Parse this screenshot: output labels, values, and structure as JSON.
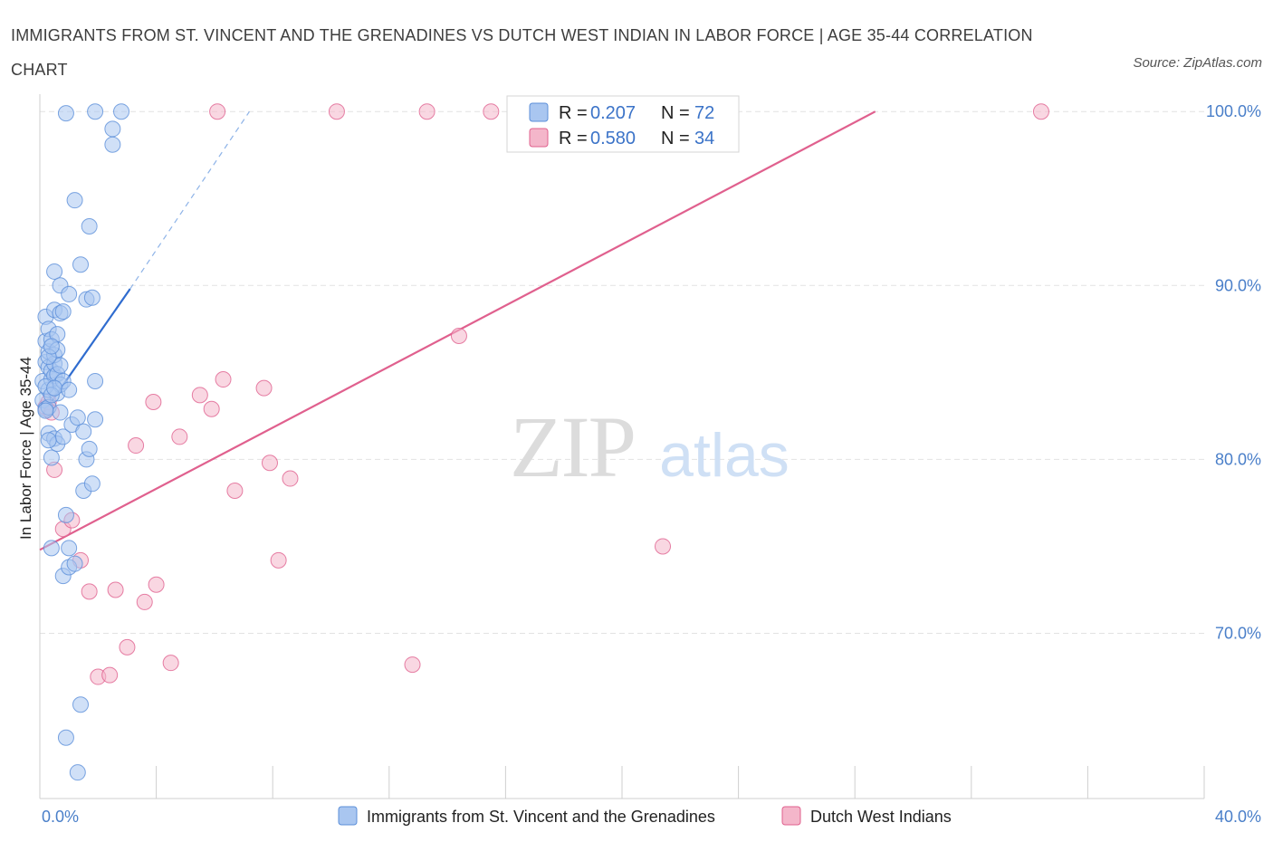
{
  "title": "IMMIGRANTS FROM ST. VINCENT AND THE GRENADINES VS DUTCH WEST INDIAN IN LABOR FORCE | AGE 35-44 CORRELATION CHART",
  "source": "Source: ZipAtlas.com",
  "colors": {
    "blue": "#5b8fd9",
    "blue_fill": "#a9c6f0",
    "pink": "#e0608e",
    "pink_fill": "#f4b6ca",
    "tick": "#4a7fc9"
  },
  "legend": {
    "r_label": "R =",
    "n_label": "N =",
    "rows": [
      {
        "r": "0.207",
        "n": "72"
      },
      {
        "r": "0.580",
        "n": "34"
      }
    ]
  },
  "chart_data": {
    "type": "scatter",
    "ylabel": "In Labor Force | Age 35-44",
    "xlim": [
      0,
      40
    ],
    "ylim": [
      60.5,
      101
    ],
    "x_tick_labels": [
      "0.0%",
      "40.0%"
    ],
    "y_ticks": [
      70,
      80,
      90,
      100
    ],
    "y_tick_labels": [
      "70.0%",
      "80.0%",
      "90.0%",
      "100.0%"
    ],
    "series": [
      {
        "name": "Immigrants from St. Vincent and the Grenadines",
        "color": "#5b8fd9",
        "points": [
          [
            0.1,
            83.4
          ],
          [
            0.1,
            84.5
          ],
          [
            0.2,
            85.6
          ],
          [
            0.2,
            86.8
          ],
          [
            0.2,
            88.2
          ],
          [
            0.2,
            82.9
          ],
          [
            0.3,
            84.0
          ],
          [
            0.3,
            85.3
          ],
          [
            0.3,
            86.2
          ],
          [
            0.3,
            87.5
          ],
          [
            0.3,
            81.5
          ],
          [
            0.3,
            83.0
          ],
          [
            0.4,
            84.6
          ],
          [
            0.4,
            85.1
          ],
          [
            0.4,
            86.9
          ],
          [
            0.4,
            80.1
          ],
          [
            0.4,
            74.9
          ],
          [
            0.5,
            84.8
          ],
          [
            0.5,
            85.5
          ],
          [
            0.5,
            86.0
          ],
          [
            0.5,
            88.6
          ],
          [
            0.5,
            90.8
          ],
          [
            0.5,
            81.2
          ],
          [
            0.6,
            83.8
          ],
          [
            0.6,
            84.9
          ],
          [
            0.6,
            86.3
          ],
          [
            0.6,
            80.9
          ],
          [
            0.7,
            84.3
          ],
          [
            0.7,
            82.7
          ],
          [
            0.7,
            88.4
          ],
          [
            0.7,
            90.0
          ],
          [
            0.7,
            85.4
          ],
          [
            0.8,
            84.5
          ],
          [
            0.8,
            81.3
          ],
          [
            0.8,
            73.3
          ],
          [
            0.9,
            99.9
          ],
          [
            0.9,
            76.8
          ],
          [
            0.9,
            64.0
          ],
          [
            1.0,
            74.9
          ],
          [
            1.0,
            89.5
          ],
          [
            1.0,
            73.8
          ],
          [
            1.1,
            82.0
          ],
          [
            1.2,
            74.0
          ],
          [
            1.2,
            94.9
          ],
          [
            1.3,
            82.4
          ],
          [
            1.3,
            62.0
          ],
          [
            1.4,
            91.2
          ],
          [
            1.4,
            65.9
          ],
          [
            1.5,
            81.6
          ],
          [
            1.5,
            78.2
          ],
          [
            1.6,
            89.2
          ],
          [
            1.6,
            80.0
          ],
          [
            1.7,
            93.4
          ],
          [
            1.7,
            80.6
          ],
          [
            1.8,
            78.6
          ],
          [
            1.8,
            89.3
          ],
          [
            1.9,
            100.0
          ],
          [
            1.9,
            82.3
          ],
          [
            1.9,
            84.5
          ],
          [
            2.5,
            98.1
          ],
          [
            2.5,
            99.0
          ],
          [
            2.8,
            100.0
          ],
          [
            0.2,
            84.2
          ],
          [
            0.3,
            85.9
          ],
          [
            0.4,
            83.7
          ],
          [
            0.6,
            87.2
          ],
          [
            0.2,
            82.8
          ],
          [
            0.5,
            84.1
          ],
          [
            1.0,
            84.0
          ],
          [
            0.3,
            81.1
          ],
          [
            0.8,
            88.5
          ],
          [
            0.4,
            86.5
          ]
        ]
      },
      {
        "name": "Dutch West Indians",
        "color": "#e0608e",
        "points": [
          [
            0.2,
            83.0
          ],
          [
            0.3,
            83.3
          ],
          [
            0.4,
            82.7
          ],
          [
            0.5,
            79.4
          ],
          [
            0.8,
            76.0
          ],
          [
            1.1,
            76.5
          ],
          [
            1.4,
            74.2
          ],
          [
            1.7,
            72.4
          ],
          [
            2.0,
            67.5
          ],
          [
            2.4,
            67.6
          ],
          [
            2.6,
            72.5
          ],
          [
            3.0,
            69.2
          ],
          [
            3.3,
            80.8
          ],
          [
            3.6,
            71.8
          ],
          [
            3.9,
            83.3
          ],
          [
            4.0,
            72.8
          ],
          [
            4.5,
            68.3
          ],
          [
            4.8,
            81.3
          ],
          [
            5.5,
            83.7
          ],
          [
            5.9,
            82.9
          ],
          [
            6.1,
            100.0
          ],
          [
            6.3,
            84.6
          ],
          [
            6.7,
            78.2
          ],
          [
            7.7,
            84.1
          ],
          [
            7.9,
            79.8
          ],
          [
            8.2,
            74.2
          ],
          [
            8.6,
            78.9
          ],
          [
            10.2,
            100.0
          ],
          [
            12.8,
            68.2
          ],
          [
            13.3,
            100.0
          ],
          [
            14.4,
            87.1
          ],
          [
            15.5,
            100.0
          ],
          [
            21.4,
            75.0
          ],
          [
            34.4,
            100.0
          ]
        ]
      }
    ],
    "trendlines": [
      {
        "series": "Immigrants from St. Vincent and the Grenadines",
        "solid": [
          [
            0.1,
            82.6
          ],
          [
            3.1,
            89.8
          ]
        ],
        "dashed": [
          [
            3.1,
            89.8
          ],
          [
            7.2,
            100.0
          ]
        ]
      },
      {
        "series": "Dutch West Indians",
        "solid": [
          [
            0.0,
            74.8
          ],
          [
            28.7,
            100.0
          ]
        ]
      }
    ],
    "grid": true,
    "legend_position": "top-center",
    "watermark": "ZIPatlas"
  }
}
